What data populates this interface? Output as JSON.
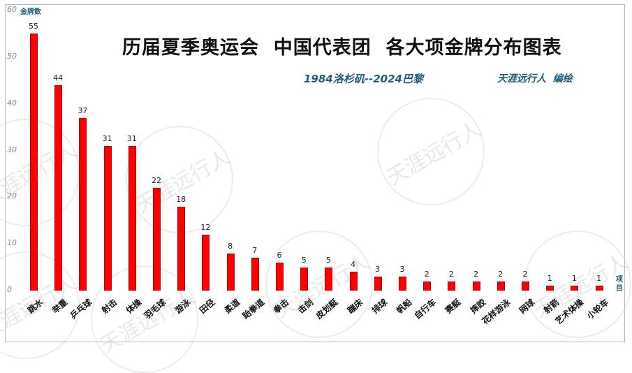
{
  "chart_data": {
    "type": "bar",
    "title": "历届夏季奥运会  中国代表团  各大项金牌分布图表",
    "subtitle": "1984洛杉矶--2024巴黎",
    "author": "天涯远行人  编绘",
    "xlabel": "项目",
    "ylabel": "金牌数",
    "ylim": [
      0,
      60
    ],
    "yticks": [
      "0",
      "10",
      "20",
      "30",
      "40",
      "50",
      "60"
    ],
    "grid": false,
    "legend": null,
    "bar_color": "#ff0000",
    "categories": [
      "跳水",
      "举重",
      "乒乓球",
      "射击",
      "体操",
      "羽毛球",
      "游泳",
      "田径",
      "柔道",
      "跆拳道",
      "拳击",
      "击剑",
      "皮划艇",
      "蹦床",
      "排球",
      "帆船",
      "自行车",
      "赛艇",
      "摔跤",
      "花样游泳",
      "网球",
      "射箭",
      "艺术体操",
      "小轮车"
    ],
    "values": [
      55,
      44,
      37,
      31,
      31,
      22,
      18,
      12,
      8,
      7,
      6,
      5,
      5,
      4,
      3,
      3,
      2,
      2,
      2,
      2,
      2,
      1,
      1,
      1
    ]
  },
  "watermark": "天涯远行人"
}
